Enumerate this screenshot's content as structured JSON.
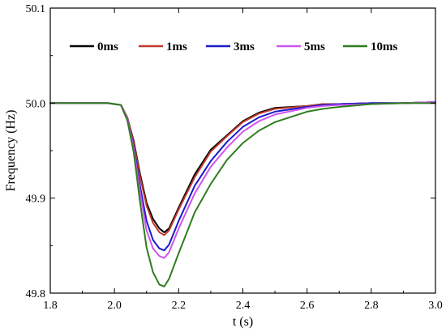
{
  "chart_data": {
    "type": "line",
    "xlabel": "t (s)",
    "ylabel": "Frequency (Hz)",
    "xlim": [
      1.8,
      3.0
    ],
    "ylim": [
      49.8,
      50.1
    ],
    "xticks": [
      "1.8",
      "2.0",
      "2.2",
      "2.4",
      "2.6",
      "2.8",
      "3.0"
    ],
    "yticks": [
      "49.8",
      "49.9",
      "50.0",
      "50.1"
    ],
    "grid": false,
    "legend_position": "top",
    "series": [
      {
        "name": "0ms",
        "color": "#000000",
        "points": [
          [
            1.8,
            50.0
          ],
          [
            1.9,
            50.0
          ],
          [
            1.98,
            50.0
          ],
          [
            2.02,
            49.998
          ],
          [
            2.04,
            49.985
          ],
          [
            2.06,
            49.96
          ],
          [
            2.08,
            49.925
          ],
          [
            2.1,
            49.895
          ],
          [
            2.12,
            49.878
          ],
          [
            2.14,
            49.868
          ],
          [
            2.155,
            49.864
          ],
          [
            2.17,
            49.868
          ],
          [
            2.2,
            49.89
          ],
          [
            2.25,
            49.925
          ],
          [
            2.3,
            49.951
          ],
          [
            2.35,
            49.966
          ],
          [
            2.4,
            49.981
          ],
          [
            2.45,
            49.99
          ],
          [
            2.5,
            49.995
          ],
          [
            2.6,
            49.997
          ],
          [
            2.65,
            49.999
          ],
          [
            2.7,
            49.999
          ],
          [
            2.8,
            50.0
          ],
          [
            2.9,
            50.0
          ],
          [
            3.0,
            50.001
          ]
        ]
      },
      {
        "name": "1ms",
        "color": "#c0392b",
        "points": [
          [
            1.8,
            50.0
          ],
          [
            1.9,
            50.0
          ],
          [
            1.98,
            50.0
          ],
          [
            2.02,
            49.998
          ],
          [
            2.04,
            49.985
          ],
          [
            2.06,
            49.958
          ],
          [
            2.08,
            49.922
          ],
          [
            2.1,
            49.892
          ],
          [
            2.12,
            49.874
          ],
          [
            2.14,
            49.864
          ],
          [
            2.155,
            49.861
          ],
          [
            2.17,
            49.866
          ],
          [
            2.2,
            49.888
          ],
          [
            2.25,
            49.922
          ],
          [
            2.3,
            49.949
          ],
          [
            2.35,
            49.965
          ],
          [
            2.4,
            49.98
          ],
          [
            2.45,
            49.989
          ],
          [
            2.5,
            49.994
          ],
          [
            2.6,
            49.997
          ],
          [
            2.65,
            49.999
          ],
          [
            2.7,
            49.999
          ],
          [
            2.8,
            50.0
          ],
          [
            2.9,
            50.0
          ],
          [
            3.0,
            50.001
          ]
        ]
      },
      {
        "name": "3ms",
        "color": "#1a1acc",
        "points": [
          [
            1.8,
            50.0
          ],
          [
            1.9,
            50.0
          ],
          [
            1.98,
            50.0
          ],
          [
            2.02,
            49.998
          ],
          [
            2.04,
            49.984
          ],
          [
            2.06,
            49.954
          ],
          [
            2.08,
            49.912
          ],
          [
            2.1,
            49.876
          ],
          [
            2.12,
            49.856
          ],
          [
            2.14,
            49.847
          ],
          [
            2.155,
            49.845
          ],
          [
            2.17,
            49.851
          ],
          [
            2.2,
            49.876
          ],
          [
            2.25,
            49.913
          ],
          [
            2.3,
            49.939
          ],
          [
            2.35,
            49.959
          ],
          [
            2.4,
            49.975
          ],
          [
            2.45,
            49.985
          ],
          [
            2.5,
            49.991
          ],
          [
            2.6,
            49.996
          ],
          [
            2.65,
            49.998
          ],
          [
            2.7,
            49.999
          ],
          [
            2.8,
            50.0
          ],
          [
            2.9,
            50.0
          ],
          [
            3.0,
            50.001
          ]
        ]
      },
      {
        "name": "5ms",
        "color": "#cc55ee",
        "points": [
          [
            1.8,
            50.0
          ],
          [
            1.9,
            50.0
          ],
          [
            1.98,
            50.0
          ],
          [
            2.02,
            49.998
          ],
          [
            2.04,
            49.984
          ],
          [
            2.06,
            49.952
          ],
          [
            2.08,
            49.906
          ],
          [
            2.1,
            49.866
          ],
          [
            2.12,
            49.847
          ],
          [
            2.14,
            49.839
          ],
          [
            2.155,
            49.837
          ],
          [
            2.17,
            49.843
          ],
          [
            2.2,
            49.868
          ],
          [
            2.25,
            49.905
          ],
          [
            2.3,
            49.933
          ],
          [
            2.35,
            49.953
          ],
          [
            2.4,
            49.97
          ],
          [
            2.45,
            49.981
          ],
          [
            2.5,
            49.988
          ],
          [
            2.6,
            49.995
          ],
          [
            2.65,
            49.997
          ],
          [
            2.7,
            49.998
          ],
          [
            2.8,
            49.999
          ],
          [
            2.9,
            50.0
          ],
          [
            3.0,
            50.001
          ]
        ]
      },
      {
        "name": "10ms",
        "color": "#2e7d1f",
        "points": [
          [
            1.8,
            50.0
          ],
          [
            1.9,
            50.0
          ],
          [
            1.98,
            50.0
          ],
          [
            2.02,
            49.998
          ],
          [
            2.04,
            49.982
          ],
          [
            2.06,
            49.948
          ],
          [
            2.08,
            49.895
          ],
          [
            2.1,
            49.848
          ],
          [
            2.12,
            49.822
          ],
          [
            2.14,
            49.809
          ],
          [
            2.155,
            49.807
          ],
          [
            2.17,
            49.815
          ],
          [
            2.2,
            49.842
          ],
          [
            2.25,
            49.885
          ],
          [
            2.3,
            49.915
          ],
          [
            2.35,
            49.94
          ],
          [
            2.4,
            49.958
          ],
          [
            2.45,
            49.971
          ],
          [
            2.5,
            49.98
          ],
          [
            2.6,
            49.991
          ],
          [
            2.65,
            49.994
          ],
          [
            2.7,
            49.996
          ],
          [
            2.8,
            49.999
          ],
          [
            2.9,
            50.0
          ],
          [
            3.0,
            50.0
          ]
        ]
      }
    ]
  }
}
